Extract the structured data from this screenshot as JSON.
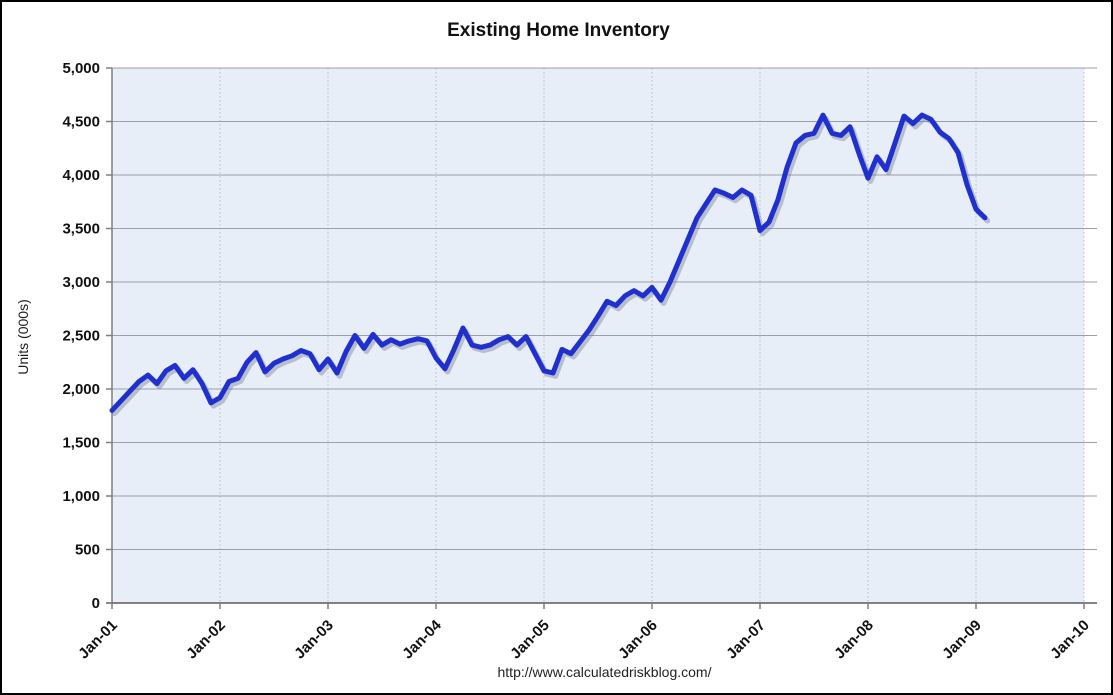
{
  "title": "Existing Home Inventory",
  "footer": "http://www.calculatedriskblog.com/",
  "chart_data": {
    "type": "line",
    "title": "Existing Home Inventory",
    "xlabel": "",
    "ylabel": "Units (000s)",
    "unit": "thousands of units",
    "ylim": [
      0,
      5000
    ],
    "ytick_step": 500,
    "ytick_labels": [
      "0",
      "500",
      "1,000",
      "1,500",
      "2,000",
      "2,500",
      "3,000",
      "3,500",
      "4,000",
      "4,500",
      "5,000"
    ],
    "xtick_labels": [
      "Jan-01",
      "Jan-02",
      "Jan-03",
      "Jan-04",
      "Jan-05",
      "Jan-06",
      "Jan-07",
      "Jan-08",
      "Jan-09",
      "Jan-10"
    ],
    "x_frequency": "monthly",
    "x_range_start": "Jan-2001",
    "x_range_end": "Feb-2009",
    "grid": "horizontal solid gray, vertical dotted at each January",
    "legend": "none",
    "line_color": "#2030CE",
    "plot_bg": "#E8EEF7",
    "series": [
      {
        "name": "Existing Home Inventory",
        "values": [
          1800,
          1890,
          1980,
          2070,
          2130,
          2050,
          2170,
          2220,
          2100,
          2180,
          2050,
          1870,
          1920,
          2070,
          2100,
          2250,
          2340,
          2160,
          2240,
          2280,
          2310,
          2360,
          2330,
          2180,
          2280,
          2150,
          2350,
          2500,
          2380,
          2510,
          2410,
          2460,
          2420,
          2450,
          2470,
          2450,
          2290,
          2190,
          2370,
          2570,
          2410,
          2390,
          2410,
          2460,
          2490,
          2410,
          2490,
          2330,
          2170,
          2150,
          2370,
          2330,
          2440,
          2550,
          2680,
          2820,
          2780,
          2870,
          2920,
          2870,
          2950,
          2830,
          3000,
          3200,
          3400,
          3600,
          3730,
          3860,
          3830,
          3790,
          3860,
          3810,
          3480,
          3560,
          3770,
          4070,
          4300,
          4370,
          4390,
          4560,
          4390,
          4370,
          4450,
          4200,
          3970,
          4170,
          4050,
          4300,
          4550,
          4480,
          4560,
          4520,
          4400,
          4340,
          4210,
          3910,
          3680,
          3600
        ]
      }
    ]
  }
}
